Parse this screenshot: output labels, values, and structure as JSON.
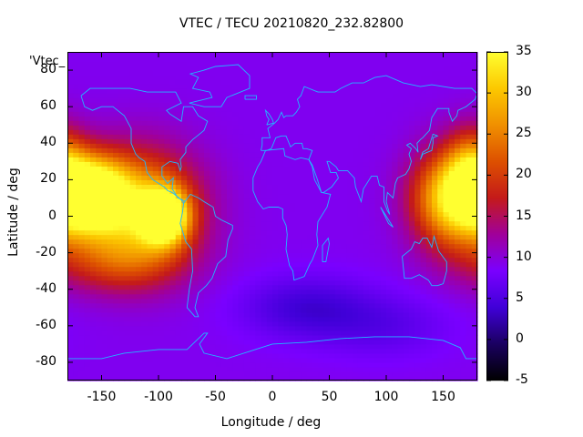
{
  "chart_data": {
    "type": "heatmap",
    "title": "VTEC / TECU 20210820_232.82800",
    "xlabel": "Longitude / deg",
    "ylabel": "Latitude / deg",
    "key_label": "'Vtec_",
    "xlim": [
      -180,
      180
    ],
    "ylim": [
      -90,
      90
    ],
    "xticks": [
      "-150",
      "-100",
      "-50",
      "0",
      "50",
      "100",
      "150"
    ],
    "yticks": [
      "80",
      "60",
      "40",
      "20",
      "0",
      "-20",
      "-40",
      "-60",
      "-80"
    ],
    "colorbar": {
      "range": [
        -5,
        35
      ],
      "ticks": [
        "35",
        "30",
        "25",
        "20",
        "15",
        "10",
        "5",
        "0",
        "-5"
      ],
      "colormap": [
        "#000000",
        "#1a0060",
        "#4000d8",
        "#7a00ff",
        "#a0009a",
        "#c41a1a",
        "#dd5000",
        "#f09000",
        "#fcc800",
        "#ffff30"
      ]
    },
    "grid": false,
    "background_vtec": 9,
    "hotspots": [
      {
        "lon": -158,
        "lat": 12,
        "peak": 28,
        "sx": 22,
        "sy": 14
      },
      {
        "lon": -115,
        "lat": 4,
        "peak": 20,
        "sx": 35,
        "sy": 22
      },
      {
        "lon": -95,
        "lat": 0,
        "peak": 28,
        "sx": 14,
        "sy": 10
      },
      {
        "lon": 160,
        "lat": 10,
        "peak": 25,
        "sx": 25,
        "sy": 18
      },
      {
        "lon": 175,
        "lat": 28,
        "peak": 10,
        "sx": 15,
        "sy": 15
      },
      {
        "lon": -140,
        "lat": -25,
        "peak": 8,
        "sx": 40,
        "sy": 12
      },
      {
        "lon": 30,
        "lat": -50,
        "peak": -5,
        "sx": 40,
        "sy": 12
      },
      {
        "lon": 100,
        "lat": -60,
        "peak": -3,
        "sx": 40,
        "sy": 12
      }
    ],
    "coastlines": [
      [
        [
          -168,
          66
        ],
        [
          -160,
          70
        ],
        [
          -140,
          70
        ],
        [
          -125,
          70
        ],
        [
          -110,
          68
        ],
        [
          -95,
          68
        ],
        [
          -85,
          68
        ],
        [
          -80,
          62
        ],
        [
          -93,
          58
        ],
        [
          -90,
          56
        ],
        [
          -80,
          52
        ],
        [
          -78,
          60
        ],
        [
          -70,
          60
        ],
        [
          -65,
          55
        ],
        [
          -57,
          52
        ],
        [
          -60,
          47
        ],
        [
          -66,
          44
        ],
        [
          -70,
          42
        ],
        [
          -76,
          38
        ],
        [
          -76,
          35
        ],
        [
          -81,
          31
        ],
        [
          -80,
          27
        ],
        [
          -81,
          25
        ],
        [
          -83,
          29
        ],
        [
          -90,
          30
        ],
        [
          -97,
          27
        ],
        [
          -97,
          22
        ],
        [
          -92,
          18
        ],
        [
          -87,
          21
        ],
        [
          -88,
          15
        ],
        [
          -83,
          10
        ],
        [
          -79,
          9
        ],
        [
          -77,
          8
        ],
        [
          -78,
          7
        ],
        [
          -79,
          2
        ],
        [
          -81,
          -4
        ],
        [
          -76,
          -14
        ],
        [
          -71,
          -18
        ],
        [
          -70,
          -30
        ],
        [
          -73,
          -40
        ],
        [
          -75,
          -50
        ],
        [
          -68,
          -55
        ],
        [
          -65,
          -55
        ],
        [
          -68,
          -50
        ],
        [
          -65,
          -42
        ],
        [
          -58,
          -38
        ],
        [
          -53,
          -34
        ],
        [
          -48,
          -26
        ],
        [
          -41,
          -22
        ],
        [
          -39,
          -13
        ],
        [
          -35,
          -7
        ],
        [
          -35,
          -5
        ],
        [
          -45,
          -2
        ],
        [
          -50,
          0
        ],
        [
          -52,
          5
        ],
        [
          -60,
          8
        ],
        [
          -65,
          10
        ],
        [
          -72,
          12
        ],
        [
          -77,
          8
        ],
        [
          -78,
          7
        ],
        [
          -80,
          9
        ],
        [
          -86,
          12
        ],
        [
          -88,
          13
        ],
        [
          -92,
          14
        ],
        [
          -95,
          16
        ],
        [
          -105,
          20
        ],
        [
          -110,
          24
        ],
        [
          -112,
          30
        ],
        [
          -117,
          32
        ],
        [
          -120,
          34
        ],
        [
          -124,
          40
        ],
        [
          -124,
          48
        ],
        [
          -130,
          55
        ],
        [
          -140,
          60
        ],
        [
          -150,
          60
        ],
        [
          -158,
          58
        ],
        [
          -165,
          60
        ],
        [
          -168,
          66
        ]
      ],
      [
        [
          -10,
          36
        ],
        [
          -9,
          39
        ],
        [
          -9,
          43
        ],
        [
          -2,
          43
        ],
        [
          -4,
          48
        ],
        [
          2,
          51
        ],
        [
          5,
          53
        ],
        [
          8,
          57
        ],
        [
          10,
          54
        ],
        [
          12,
          55
        ],
        [
          13,
          55
        ],
        [
          18,
          55
        ],
        [
          21,
          57
        ],
        [
          24,
          60
        ],
        [
          22,
          64
        ],
        [
          25,
          66
        ],
        [
          28,
          71
        ],
        [
          40,
          68
        ],
        [
          45,
          68
        ],
        [
          55,
          68
        ],
        [
          60,
          70
        ],
        [
          70,
          73
        ],
        [
          80,
          73
        ],
        [
          90,
          76
        ],
        [
          100,
          77
        ],
        [
          115,
          73
        ],
        [
          130,
          71
        ],
        [
          140,
          72
        ],
        [
          160,
          70
        ],
        [
          175,
          70
        ],
        [
          180,
          67
        ],
        [
          178,
          64
        ],
        [
          170,
          60
        ],
        [
          163,
          58
        ],
        [
          162,
          55
        ],
        [
          158,
          52
        ],
        [
          155,
          57
        ],
        [
          155,
          59
        ],
        [
          145,
          59
        ],
        [
          140,
          54
        ],
        [
          138,
          47
        ],
        [
          132,
          43
        ],
        [
          130,
          42
        ],
        [
          127,
          40
        ],
        [
          128,
          35
        ],
        [
          126,
          37
        ],
        [
          121,
          40
        ],
        [
          118,
          39
        ],
        [
          122,
          37
        ],
        [
          120,
          34
        ],
        [
          122,
          30
        ],
        [
          120,
          26
        ],
        [
          117,
          23
        ],
        [
          110,
          21
        ],
        [
          108,
          18
        ],
        [
          106,
          10
        ],
        [
          101,
          13
        ],
        [
          100,
          8
        ],
        [
          103,
          1
        ],
        [
          101,
          3
        ],
        [
          98,
          8
        ],
        [
          98,
          16
        ],
        [
          94,
          17
        ],
        [
          92,
          22
        ],
        [
          87,
          22
        ],
        [
          80,
          15
        ],
        [
          78,
          8
        ],
        [
          73,
          16
        ],
        [
          72,
          21
        ],
        [
          66,
          25
        ],
        [
          58,
          25
        ],
        [
          56,
          27
        ],
        [
          50,
          30
        ],
        [
          48,
          30
        ],
        [
          51,
          24
        ],
        [
          56,
          24
        ],
        [
          58,
          21
        ],
        [
          52,
          16
        ],
        [
          45,
          13
        ],
        [
          43,
          13
        ],
        [
          39,
          21
        ],
        [
          35,
          28
        ],
        [
          32,
          31
        ],
        [
          35,
          36
        ],
        [
          30,
          37
        ],
        [
          27,
          37
        ],
        [
          26,
          40
        ],
        [
          23,
          40
        ],
        [
          20,
          40
        ],
        [
          16,
          38
        ],
        [
          12,
          44
        ],
        [
          8,
          44
        ],
        [
          3,
          43
        ],
        [
          -1,
          37
        ],
        [
          -5,
          36
        ],
        [
          -10,
          36
        ]
      ],
      [
        [
          -17,
          21
        ],
        [
          -13,
          27
        ],
        [
          -10,
          30
        ],
        [
          -6,
          36
        ],
        [
          10,
          37
        ],
        [
          11,
          33
        ],
        [
          20,
          31
        ],
        [
          25,
          32
        ],
        [
          32,
          31
        ],
        [
          35,
          27
        ],
        [
          37,
          20
        ],
        [
          43,
          13
        ],
        [
          51,
          12
        ],
        [
          48,
          5
        ],
        [
          40,
          -3
        ],
        [
          39,
          -10
        ],
        [
          40,
          -16
        ],
        [
          35,
          -24
        ],
        [
          33,
          -26
        ],
        [
          28,
          -33
        ],
        [
          19,
          -35
        ],
        [
          18,
          -30
        ],
        [
          15,
          -27
        ],
        [
          12,
          -18
        ],
        [
          13,
          -10
        ],
        [
          12,
          -5
        ],
        [
          9,
          -1
        ],
        [
          9,
          4
        ],
        [
          5,
          5
        ],
        [
          -3,
          5
        ],
        [
          -8,
          4
        ],
        [
          -13,
          8
        ],
        [
          -17,
          14
        ],
        [
          -17,
          21
        ]
      ],
      [
        [
          114,
          -22
        ],
        [
          116,
          -34
        ],
        [
          122,
          -34
        ],
        [
          129,
          -32
        ],
        [
          137,
          -35
        ],
        [
          140,
          -38
        ],
        [
          145,
          -38
        ],
        [
          150,
          -37
        ],
        [
          153,
          -30
        ],
        [
          153,
          -25
        ],
        [
          146,
          -19
        ],
        [
          142,
          -11
        ],
        [
          140,
          -17
        ],
        [
          136,
          -12
        ],
        [
          132,
          -12
        ],
        [
          129,
          -15
        ],
        [
          125,
          -14
        ],
        [
          122,
          -18
        ],
        [
          114,
          -22
        ]
      ],
      [
        [
          44,
          -25
        ],
        [
          47,
          -25
        ],
        [
          50,
          -15
        ],
        [
          49,
          -12
        ],
        [
          44,
          -16
        ],
        [
          44,
          -25
        ]
      ],
      [
        [
          -5,
          50
        ],
        [
          1,
          51
        ],
        [
          0,
          53
        ],
        [
          -3,
          56
        ],
        [
          -6,
          58
        ],
        [
          -5,
          55
        ],
        [
          -3,
          53
        ],
        [
          -5,
          50
        ]
      ],
      [
        [
          130,
          31
        ],
        [
          132,
          34
        ],
        [
          136,
          35
        ],
        [
          140,
          36
        ],
        [
          141,
          40
        ],
        [
          141,
          43
        ],
        [
          145,
          44
        ],
        [
          141,
          45
        ],
        [
          139,
          41
        ],
        [
          137,
          37
        ],
        [
          132,
          35
        ],
        [
          130,
          31
        ]
      ],
      [
        [
          -73,
          62
        ],
        [
          -60,
          60
        ],
        [
          -45,
          60
        ],
        [
          -40,
          65
        ],
        [
          -20,
          70
        ],
        [
          -20,
          77
        ],
        [
          -30,
          83
        ],
        [
          -50,
          82
        ],
        [
          -60,
          80
        ],
        [
          -72,
          78
        ],
        [
          -65,
          76
        ],
        [
          -70,
          70
        ],
        [
          -55,
          68
        ],
        [
          -53,
          65
        ],
        [
          -73,
          62
        ]
      ],
      [
        [
          -24,
          64
        ],
        [
          -14,
          64
        ],
        [
          -14,
          66
        ],
        [
          -24,
          66
        ],
        [
          -24,
          64
        ]
      ],
      [
        [
          95,
          5
        ],
        [
          105,
          -5
        ],
        [
          106,
          -6
        ],
        [
          102,
          -4
        ],
        [
          95,
          5
        ]
      ],
      [
        [
          -180,
          -78
        ],
        [
          -150,
          -78
        ],
        [
          -130,
          -75
        ],
        [
          -100,
          -73
        ],
        [
          -75,
          -73
        ],
        [
          -60,
          -64
        ],
        [
          -57,
          -64
        ],
        [
          -64,
          -70
        ],
        [
          -60,
          -75
        ],
        [
          -40,
          -78
        ],
        [
          -20,
          -74
        ],
        [
          0,
          -70
        ],
        [
          30,
          -69
        ],
        [
          60,
          -67
        ],
        [
          90,
          -66
        ],
        [
          120,
          -66
        ],
        [
          150,
          -68
        ],
        [
          165,
          -72
        ],
        [
          170,
          -78
        ],
        [
          180,
          -78
        ]
      ]
    ]
  }
}
